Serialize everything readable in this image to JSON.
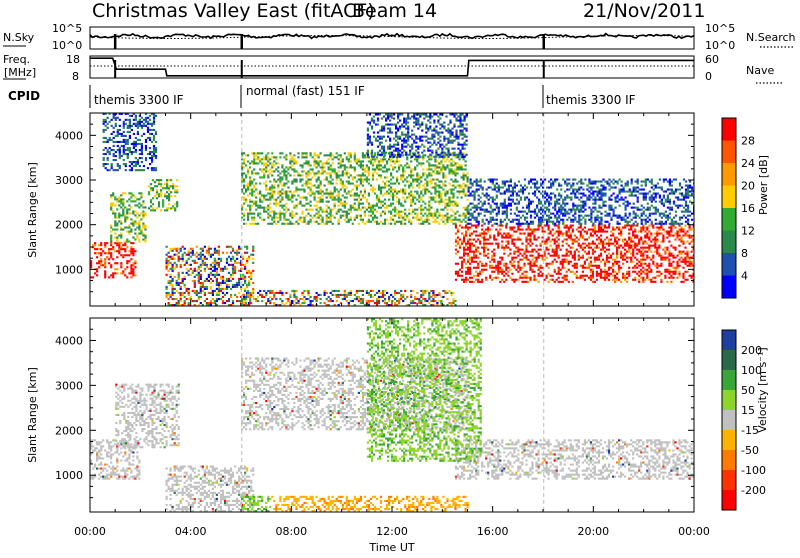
{
  "header": {
    "station": "Christmas Valley East (fitACF)",
    "beam": "Beam 14",
    "date": "21/Nov/2011"
  },
  "noise_panel": {
    "left_label": "N.Sky",
    "left_ticks": [
      "10^5",
      "10^0"
    ],
    "right_label": "N.Search",
    "right_ticks": [
      "10^5",
      "10^0"
    ]
  },
  "freq_panel": {
    "left_label_1": "Freq.",
    "left_label_2": "[MHz]",
    "left_ticks": [
      "18",
      "8"
    ],
    "right_label": "Nave",
    "right_ticks": [
      "60",
      "0"
    ]
  },
  "cpid_panel": {
    "label": "CPID",
    "segments": [
      {
        "start_hour": 0,
        "text": "themis 3300 IF"
      },
      {
        "start_hour": 6.03,
        "text": "normal (fast) 151 IF"
      },
      {
        "start_hour": 18.03,
        "text": "themis 3300 IF"
      }
    ]
  },
  "chart_data": [
    {
      "type": "heatmap",
      "name": "Power",
      "ylabel": "Slant Range [km]",
      "xlim": [
        0,
        24
      ],
      "ylim": [
        180,
        4500
      ],
      "y_ticks": [
        "1000",
        "2000",
        "3000",
        "4000"
      ],
      "colorbar": {
        "label": "Power [dB]",
        "ticks": [
          "28",
          "24",
          "20",
          "16",
          "12",
          "8",
          "4"
        ],
        "colors": [
          "#ff0000",
          "#ff5500",
          "#ff9900",
          "#ffcc00",
          "#33aa33",
          "#2a8a4a",
          "#1f4fb0",
          "#0000ff"
        ]
      },
      "regions": [
        {
          "x": [
            0.0,
            1.8
          ],
          "y": [
            800,
            1600
          ],
          "level": "high"
        },
        {
          "x": [
            0.8,
            2.2
          ],
          "y": [
            1600,
            2700
          ],
          "level": "medium"
        },
        {
          "x": [
            0.5,
            2.6
          ],
          "y": [
            3200,
            4500
          ],
          "level": "low"
        },
        {
          "x": [
            2.3,
            3.5
          ],
          "y": [
            2300,
            3000
          ],
          "level": "medium"
        },
        {
          "x": [
            3.0,
            6.5
          ],
          "y": [
            180,
            1500
          ],
          "level": "mixed"
        },
        {
          "x": [
            6.0,
            14.5
          ],
          "y": [
            180,
            500
          ],
          "level": "mixed"
        },
        {
          "x": [
            6.0,
            15.0
          ],
          "y": [
            2000,
            3600
          ],
          "level": "medium"
        },
        {
          "x": [
            11.0,
            15.0
          ],
          "y": [
            3500,
            4500
          ],
          "level": "low"
        },
        {
          "x": [
            14.5,
            24.0
          ],
          "y": [
            700,
            2000
          ],
          "level": "high"
        },
        {
          "x": [
            15.0,
            24.0
          ],
          "y": [
            2000,
            3000
          ],
          "level": "low"
        }
      ]
    },
    {
      "type": "heatmap",
      "name": "Velocity",
      "xlabel": "Time UT",
      "ylabel": "Slant Range [km]",
      "xlim": [
        0,
        24
      ],
      "ylim": [
        180,
        4500
      ],
      "x_ticks": [
        "00:00",
        "04:00",
        "08:00",
        "12:00",
        "16:00",
        "20:00",
        "00:00"
      ],
      "y_ticks": [
        "1000",
        "2000",
        "3000",
        "4000"
      ],
      "colorbar": {
        "label": "Velocity [m s⁻¹]",
        "ticks": [
          "200",
          "100",
          "50",
          "15",
          "-15",
          "-50",
          "-100",
          "-200"
        ],
        "colors": [
          "#1f3fa0",
          "#2a6a4a",
          "#3aa63a",
          "#8cd42a",
          "#c0c0c0",
          "#ffb300",
          "#ff7a00",
          "#ff3300",
          "#ff0000"
        ]
      },
      "regions": [
        {
          "x": [
            0.0,
            2.0
          ],
          "y": [
            900,
            1800
          ],
          "level": "grey"
        },
        {
          "x": [
            1.0,
            3.5
          ],
          "y": [
            1600,
            3000
          ],
          "level": "grey"
        },
        {
          "x": [
            3.0,
            6.5
          ],
          "y": [
            180,
            1200
          ],
          "level": "grey"
        },
        {
          "x": [
            6.0,
            7.2
          ],
          "y": [
            180,
            500
          ],
          "level": "green"
        },
        {
          "x": [
            7.2,
            15.0
          ],
          "y": [
            180,
            500
          ],
          "level": "orange"
        },
        {
          "x": [
            6.0,
            15.0
          ],
          "y": [
            2000,
            3600
          ],
          "level": "grey"
        },
        {
          "x": [
            14.5,
            24.0
          ],
          "y": [
            900,
            1800
          ],
          "level": "grey"
        },
        {
          "x": [
            11.0,
            15.5
          ],
          "y": [
            1300,
            4500
          ],
          "level": "green"
        }
      ]
    }
  ]
}
